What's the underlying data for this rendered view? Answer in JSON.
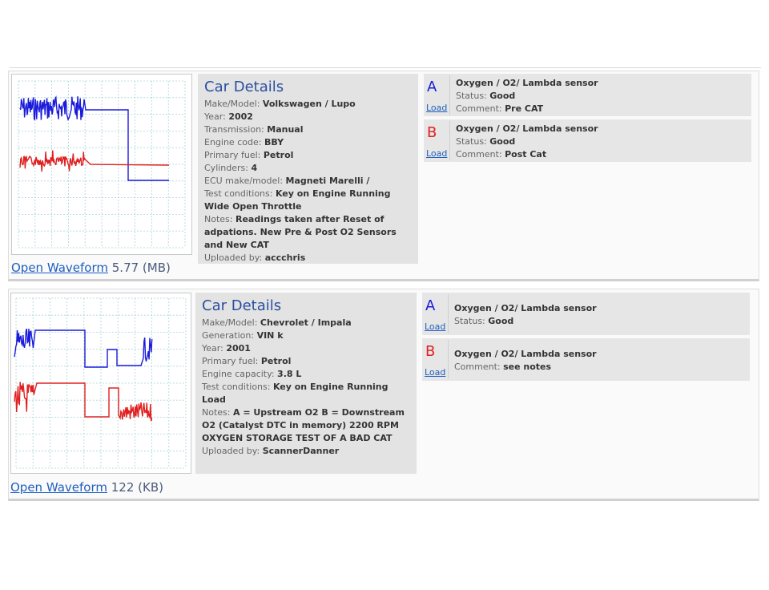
{
  "colors": {
    "channel_a": "#1a1adb",
    "channel_b": "#e02020",
    "grid": "#a9d3d9",
    "link": "#1f5fbf"
  },
  "records": [
    {
      "open_label": "Open Waveform",
      "size": "5.77 (MB)",
      "details_title": "Car Details",
      "fields": [
        {
          "label": "Make/Model: ",
          "value": "Volkswagen / Lupo"
        },
        {
          "label": "Year: ",
          "value": "2002"
        },
        {
          "label": "Transmission: ",
          "value": "Manual"
        },
        {
          "label": "Engine code: ",
          "value": "BBY"
        },
        {
          "label": "Primary fuel: ",
          "value": "Petrol"
        },
        {
          "label": "Cylinders: ",
          "value": "4"
        },
        {
          "label": "ECU make/model: ",
          "value": "Magneti Marelli /"
        },
        {
          "label": "Test conditions: ",
          "value": "Key on Engine Running Wide Open Throttle"
        },
        {
          "label": "Notes: ",
          "value": "Readings taken after Reset of adpations. New Pre & Post O2 Sensors and New CAT"
        },
        {
          "label": "Uploaded by: ",
          "value": "accchris"
        }
      ],
      "sensors": [
        {
          "letter": "A",
          "load": "Load",
          "name": "Oxygen / O2/ Lambda sensor",
          "lines": [
            {
              "label": "Status: ",
              "value": "Good"
            },
            {
              "label": "Comment: ",
              "value": "Pre CAT"
            }
          ]
        },
        {
          "letter": "B",
          "load": "Load",
          "name": "Oxygen / O2/ Lambda sensor",
          "lines": [
            {
              "label": "Status: ",
              "value": "Good"
            },
            {
              "label": "Comment: ",
              "value": "Post Cat"
            }
          ]
        }
      ]
    },
    {
      "open_label": "Open Waveform",
      "size": "122 (KB)",
      "details_title": "Car Details",
      "fields": [
        {
          "label": "Make/Model: ",
          "value": "Chevrolet / Impala"
        },
        {
          "label": "Generation: ",
          "value": "VIN k"
        },
        {
          "label": "Year: ",
          "value": "2001"
        },
        {
          "label": "Primary fuel: ",
          "value": "Petrol"
        },
        {
          "label": "Engine capacity: ",
          "value": "3.8 L"
        },
        {
          "label": "Test conditions: ",
          "value": "Key on Engine Running Load"
        },
        {
          "label": "Notes: ",
          "value": "A = Upstream O2 B = Downstream O2 (Catalyst DTC in memory) 2200 RPM OXYGEN STORAGE TEST OF A BAD CAT"
        },
        {
          "label": "Uploaded by: ",
          "value": "ScannerDanner"
        }
      ],
      "sensors": [
        {
          "letter": "A",
          "load": "Load",
          "name": "Oxygen / O2/ Lambda sensor",
          "lines": [
            {
              "label": "Status: ",
              "value": "Good"
            }
          ]
        },
        {
          "letter": "B",
          "load": "Load",
          "name": "Oxygen / O2/ Lambda sensor",
          "lines": [
            {
              "label": "Comment: ",
              "value": "see notes"
            }
          ]
        }
      ]
    }
  ]
}
